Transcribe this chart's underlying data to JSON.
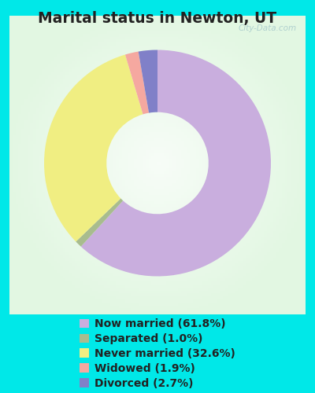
{
  "title": "Marital status in Newton, UT",
  "slices": [
    61.8,
    1.0,
    32.6,
    1.9,
    2.7
  ],
  "labels": [
    "Now married (61.8%)",
    "Separated (1.0%)",
    "Never married (32.6%)",
    "Widowed (1.9%)",
    "Divorced (2.7%)"
  ],
  "colors": [
    "#c9aede",
    "#a8bc8e",
    "#f0ee82",
    "#f5a8a0",
    "#8080c8"
  ],
  "bg_outer": "#00e8e8",
  "bg_inner_color1": "#e8f5e5",
  "bg_inner_color2": "#f5fff5",
  "title_color": "#222222",
  "title_fontsize": 13.5,
  "legend_fontsize": 10,
  "watermark": "City-Data.com",
  "donut_width": 0.55,
  "start_angle": 90
}
